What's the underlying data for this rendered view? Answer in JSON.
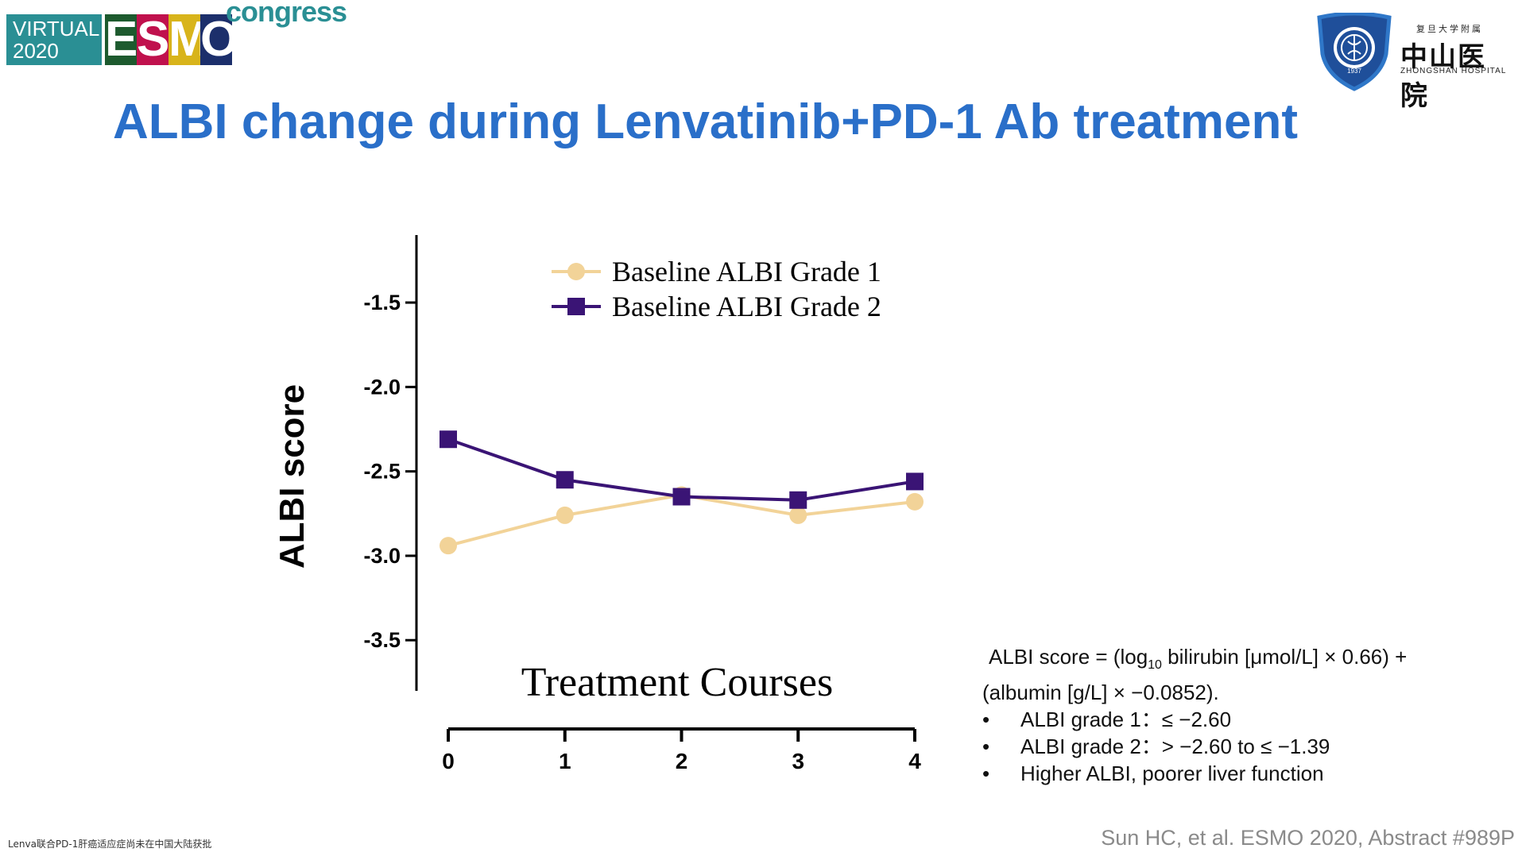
{
  "header": {
    "esmo_logo": {
      "virtual_line1": "VIRTUAL",
      "virtual_line2": "2020",
      "letters": [
        "E",
        "S",
        "M",
        "O"
      ],
      "letter_colors": [
        "#1d5a2e",
        "#c0114d",
        "#d8b41b",
        "#1c2f6b"
      ],
      "congress": "congress"
    },
    "hospital_logo": {
      "small_cn": "复旦大学附属",
      "name_cn": "中山医院",
      "name_en": "ZHONGSHAN HOSPITAL",
      "year": "1937"
    }
  },
  "title": "ALBI change during Lenvatinib+PD-1 Ab treatment",
  "colors": {
    "title": "#2a6fc9",
    "grade1": "#f2d398",
    "grade2": "#3a1475",
    "axis": "#000000",
    "citation": "#8a8a8a"
  },
  "chart_data": {
    "type": "line",
    "xlabel": "Treatment Courses",
    "ylabel": "ALBI score",
    "x": [
      0,
      1,
      2,
      3,
      4
    ],
    "x_tick_labels": [
      "0",
      "1",
      "2",
      "3",
      "4"
    ],
    "y_tick_labels": [
      "-1.5",
      "-2.0",
      "-2.5",
      "-3.0",
      "-3.5"
    ],
    "y_ticks": [
      -1.5,
      -2.0,
      -2.5,
      -3.0,
      -3.5
    ],
    "ylim": [
      -3.8,
      -1.1
    ],
    "xlim": [
      0,
      4
    ],
    "grid": false,
    "legend_position": "top-center",
    "series": [
      {
        "name": "Baseline ALBI Grade 1",
        "marker": "circle",
        "color": "#f2d398",
        "values": [
          -2.94,
          -2.76,
          -2.64,
          -2.76,
          -2.68
        ]
      },
      {
        "name": "Baseline ALBI Grade 2",
        "marker": "square",
        "color": "#3a1475",
        "values": [
          -2.31,
          -2.55,
          -2.65,
          -2.67,
          -2.56
        ]
      }
    ]
  },
  "formula": {
    "line1_pre": "ALBI score = (log",
    "line1_sub": "10",
    "line1_post": " bilirubin [μmol/L] × 0.66) +",
    "line2": "(albumin [g/L] × −0.0852).",
    "bullet_char": "•",
    "bullets": [
      "ALBI grade 1：≤ −2.60",
      "ALBI grade 2：> −2.60 to ≤ −1.39",
      "Higher ALBI, poorer liver function"
    ]
  },
  "footer": {
    "left_note": "Lenva联合PD-1肝癌适应症尚未在中国大陆获批",
    "citation": "Sun HC, et al. ESMO 2020, Abstract #989P"
  }
}
